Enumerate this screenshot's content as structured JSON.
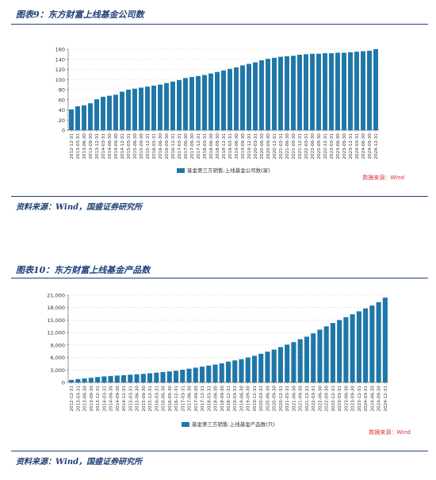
{
  "sources": {
    "note": "资料来源：Wind，国盛证券研究所"
  },
  "charts": {
    "c1": {
      "fig_title": "图表9：东方财富上线基金公司数",
      "watermark": "数据来源：Wind",
      "color": "#1f77a8"
    },
    "c2": {
      "fig_title": "图表10：东方财富上线基金产品数",
      "watermark": "数据来源：Wind",
      "color": "#1f77a8"
    }
  },
  "chart_data": [
    {
      "type": "bar",
      "title": "图表9：东方财富上线基金公司数",
      "legend_position": "bottom",
      "grid": true,
      "ylim": [
        0,
        160
      ],
      "yticks": [
        0,
        20,
        40,
        60,
        80,
        100,
        120,
        140,
        160
      ],
      "categories": [
        "2012-12-31",
        "2013-03-31",
        "2013-06-30",
        "2013-09-30",
        "2013-12-31",
        "2014-03-31",
        "2014-06-30",
        "2014-09-30",
        "2014-12-31",
        "2015-03-31",
        "2015-06-30",
        "2015-09-30",
        "2015-12-31",
        "2016-03-31",
        "2016-06-30",
        "2016-09-30",
        "2016-12-31",
        "2017-03-31",
        "2017-06-30",
        "2017-09-30",
        "2017-12-31",
        "2018-03-31",
        "2018-06-30",
        "2018-09-30",
        "2018-12-31",
        "2019-03-31",
        "2019-06-30",
        "2019-09-30",
        "2019-12-31",
        "2020-03-31",
        "2020-06-30",
        "2020-09-30",
        "2020-12-31",
        "2021-03-31",
        "2021-06-30",
        "2021-09-30",
        "2021-12-31",
        "2022-03-31",
        "2022-06-30",
        "2022-09-30",
        "2022-12-31",
        "2023-03-31",
        "2023-06-30",
        "2023-09-30",
        "2023-12-31",
        "2024-03-31",
        "2024-06-30",
        "2024-09-30",
        "2024-12-31"
      ],
      "series": [
        {
          "name": "基金第三方销售:上线基金公司数(家)",
          "values": [
            41,
            47,
            49,
            53,
            61,
            66,
            68,
            70,
            76,
            80,
            82,
            84,
            86,
            88,
            90,
            93,
            96,
            99,
            103,
            105,
            107,
            109,
            112,
            115,
            118,
            121,
            124,
            128,
            131,
            134,
            138,
            141,
            143,
            145,
            146,
            147,
            149,
            150,
            151,
            151,
            152,
            152,
            153,
            153,
            154,
            155,
            156,
            157,
            160
          ]
        }
      ]
    },
    {
      "type": "bar",
      "title": "图表10：东方财富上线基金产品数",
      "legend_position": "bottom",
      "grid": true,
      "ylim": [
        0,
        21000
      ],
      "yticks": [
        0,
        3000,
        6000,
        9000,
        12000,
        15000,
        18000,
        21000
      ],
      "categories": [
        "2012-12-31",
        "2013-03-31",
        "2013-06-30",
        "2013-09-30",
        "2013-12-31",
        "2014-03-31",
        "2014-06-30",
        "2014-09-30",
        "2014-12-31",
        "2015-03-31",
        "2015-06-30",
        "2015-09-30",
        "2015-12-31",
        "2016-03-31",
        "2016-06-30",
        "2016-09-30",
        "2016-12-31",
        "2017-03-31",
        "2017-06-30",
        "2017-09-30",
        "2017-12-31",
        "2018-03-31",
        "2018-06-30",
        "2018-09-30",
        "2018-12-31",
        "2019-03-31",
        "2019-06-30",
        "2019-09-30",
        "2019-12-31",
        "2020-03-31",
        "2020-06-30",
        "2020-09-30",
        "2020-12-31",
        "2021-03-31",
        "2021-06-30",
        "2021-09-30",
        "2021-12-31",
        "2022-03-31",
        "2022-06-30",
        "2022-09-30",
        "2022-12-31",
        "2023-03-31",
        "2023-06-30",
        "2023-09-30",
        "2023-12-31",
        "2024-03-31",
        "2024-06-30",
        "2024-09-30",
        "2024-12-31"
      ],
      "series": [
        {
          "name": "基金第三方销售:上线基金产品数(只)",
          "values": [
            600,
            800,
            950,
            1100,
            1300,
            1450,
            1550,
            1650,
            1750,
            1850,
            1950,
            2050,
            2200,
            2350,
            2500,
            2650,
            2800,
            3050,
            3300,
            3550,
            3800,
            4050,
            4300,
            4600,
            5000,
            5300,
            5600,
            6000,
            6400,
            6900,
            7400,
            7900,
            8500,
            9100,
            9700,
            10400,
            11000,
            11800,
            12700,
            13500,
            14300,
            15000,
            15700,
            16400,
            17100,
            17800,
            18500,
            19300,
            20400
          ]
        }
      ]
    }
  ]
}
